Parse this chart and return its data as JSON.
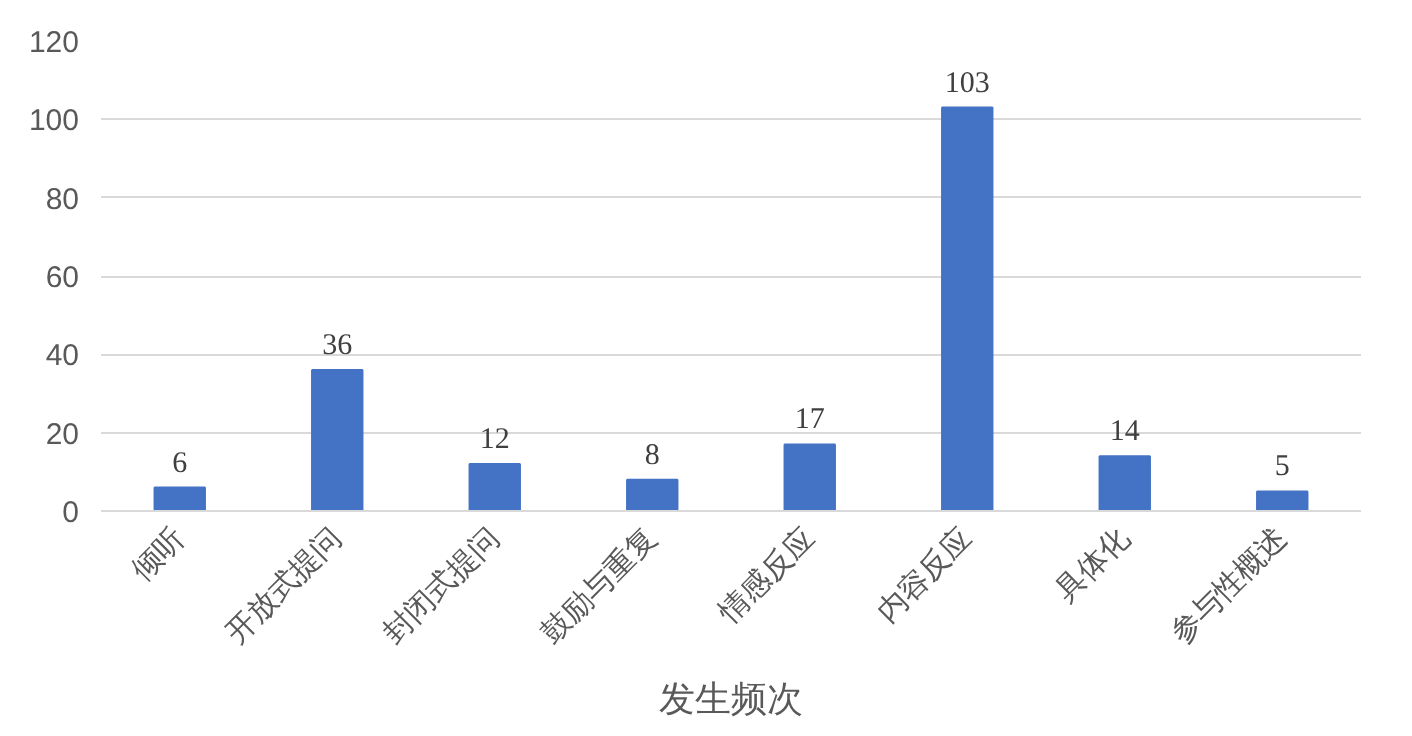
{
  "chart_data": {
    "type": "bar",
    "xlabel": "发生频次",
    "categories": [
      "倾听",
      "开放式提问",
      "封闭式提问",
      "鼓励与重复",
      "情感反应",
      "内容反应",
      "具体化",
      "参与性概述"
    ],
    "values": [
      6,
      36,
      12,
      8,
      17,
      103,
      14,
      5
    ],
    "color": "#4472c4",
    "ylim": [
      0,
      120
    ],
    "yticks": [
      0,
      20,
      40,
      60,
      80,
      100,
      120
    ],
    "grid": "y",
    "data_labels": true
  }
}
